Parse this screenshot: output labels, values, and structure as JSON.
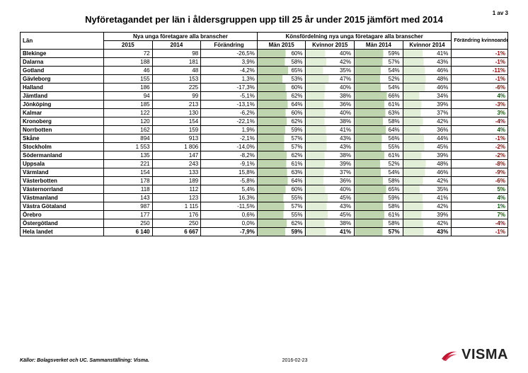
{
  "pagenum": "1 av 3",
  "title": "Nyföretagandet per län i åldersgruppen upp till 25 år under 2015 jämfört med 2014",
  "group_headers": {
    "lan": "Län",
    "nya": "Nya unga företagare alla branscher",
    "kon": "Könsfördelning nya unga företagare alla branscher",
    "for": "Förändring kvinnoandel"
  },
  "col_headers": [
    "2015",
    "2014",
    "Förändring",
    "Män 2015",
    "Kvinnor 2015",
    "Män 2014",
    "Kvinnor 2014"
  ],
  "bar_colors": {
    "man": "#bfd5b0",
    "kvinnor": "#e3eed9"
  },
  "change_colors": {
    "pos": "#006100",
    "neg": "#9c0006"
  },
  "rows": [
    {
      "lan": "Blekinge",
      "v2015": "72",
      "v2014": "98",
      "chg": "-26,5%",
      "m15": 60,
      "k15": 40,
      "m14": 59,
      "k14": 41,
      "kchg": "-1%"
    },
    {
      "lan": "Dalarna",
      "v2015": "188",
      "v2014": "181",
      "chg": "3,9%",
      "m15": 58,
      "k15": 42,
      "m14": 57,
      "k14": 43,
      "kchg": "-1%"
    },
    {
      "lan": "Gotland",
      "v2015": "46",
      "v2014": "48",
      "chg": "-4,2%",
      "m15": 65,
      "k15": 35,
      "m14": 54,
      "k14": 46,
      "kchg": "-11%"
    },
    {
      "lan": "Gävleborg",
      "v2015": "155",
      "v2014": "153",
      "chg": "1,3%",
      "m15": 53,
      "k15": 47,
      "m14": 52,
      "k14": 48,
      "kchg": "-1%"
    },
    {
      "lan": "Halland",
      "v2015": "186",
      "v2014": "225",
      "chg": "-17,3%",
      "m15": 60,
      "k15": 40,
      "m14": 54,
      "k14": 46,
      "kchg": "-6%"
    },
    {
      "lan": "Jämtland",
      "v2015": "94",
      "v2014": "99",
      "chg": "-5,1%",
      "m15": 62,
      "k15": 38,
      "m14": 66,
      "k14": 34,
      "kchg": "4%"
    },
    {
      "lan": "Jönköping",
      "v2015": "185",
      "v2014": "213",
      "chg": "-13,1%",
      "m15": 64,
      "k15": 36,
      "m14": 61,
      "k14": 39,
      "kchg": "-3%"
    },
    {
      "lan": "Kalmar",
      "v2015": "122",
      "v2014": "130",
      "chg": "-6,2%",
      "m15": 60,
      "k15": 40,
      "m14": 63,
      "k14": 37,
      "kchg": "3%"
    },
    {
      "lan": "Kronoberg",
      "v2015": "120",
      "v2014": "154",
      "chg": "-22,1%",
      "m15": 62,
      "k15": 38,
      "m14": 58,
      "k14": 42,
      "kchg": "-4%"
    },
    {
      "lan": "Norrbotten",
      "v2015": "162",
      "v2014": "159",
      "chg": "1,9%",
      "m15": 59,
      "k15": 41,
      "m14": 64,
      "k14": 36,
      "kchg": "4%"
    },
    {
      "lan": "Skåne",
      "v2015": "894",
      "v2014": "913",
      "chg": "-2,1%",
      "m15": 57,
      "k15": 43,
      "m14": 56,
      "k14": 44,
      "kchg": "-1%"
    },
    {
      "lan": "Stockholm",
      "v2015": "1 553",
      "v2014": "1 806",
      "chg": "-14,0%",
      "m15": 57,
      "k15": 43,
      "m14": 55,
      "k14": 45,
      "kchg": "-2%"
    },
    {
      "lan": "Södermanland",
      "v2015": "135",
      "v2014": "147",
      "chg": "-8,2%",
      "m15": 62,
      "k15": 38,
      "m14": 61,
      "k14": 39,
      "kchg": "-2%"
    },
    {
      "lan": "Uppsala",
      "v2015": "221",
      "v2014": "243",
      "chg": "-9,1%",
      "m15": 61,
      "k15": 39,
      "m14": 52,
      "k14": 48,
      "kchg": "-8%"
    },
    {
      "lan": "Värmland",
      "v2015": "154",
      "v2014": "133",
      "chg": "15,8%",
      "m15": 63,
      "k15": 37,
      "m14": 54,
      "k14": 46,
      "kchg": "-9%"
    },
    {
      "lan": "Västerbotten",
      "v2015": "178",
      "v2014": "189",
      "chg": "-5,8%",
      "m15": 64,
      "k15": 36,
      "m14": 58,
      "k14": 42,
      "kchg": "-6%"
    },
    {
      "lan": "Västernorrland",
      "v2015": "118",
      "v2014": "112",
      "chg": "5,4%",
      "m15": 60,
      "k15": 40,
      "m14": 65,
      "k14": 35,
      "kchg": "5%"
    },
    {
      "lan": "Västmanland",
      "v2015": "143",
      "v2014": "123",
      "chg": "16,3%",
      "m15": 55,
      "k15": 45,
      "m14": 59,
      "k14": 41,
      "kchg": "4%"
    },
    {
      "lan": "Västra Götaland",
      "v2015": "987",
      "v2014": "1 115",
      "chg": "-11,5%",
      "m15": 57,
      "k15": 43,
      "m14": 58,
      "k14": 42,
      "kchg": "1%"
    },
    {
      "lan": "Örebro",
      "v2015": "177",
      "v2014": "176",
      "chg": "0,6%",
      "m15": 55,
      "k15": 45,
      "m14": 61,
      "k14": 39,
      "kchg": "7%"
    },
    {
      "lan": "Östergötland",
      "v2015": "250",
      "v2014": "250",
      "chg": "0,0%",
      "m15": 62,
      "k15": 38,
      "m14": 58,
      "k14": 42,
      "kchg": "-4%"
    }
  ],
  "total": {
    "lan": "Hela landet",
    "v2015": "6 140",
    "v2014": "6 667",
    "chg": "-7,9%",
    "m15": 59,
    "k15": 41,
    "m14": 57,
    "k14": 43,
    "kchg": "-1%"
  },
  "footer": {
    "source": "Källor: Bolagsverket och UC.  Sammanställning: Visma.",
    "date": "2016-02-23",
    "logo_text": "VISMA",
    "logo_color": "#c41230"
  }
}
